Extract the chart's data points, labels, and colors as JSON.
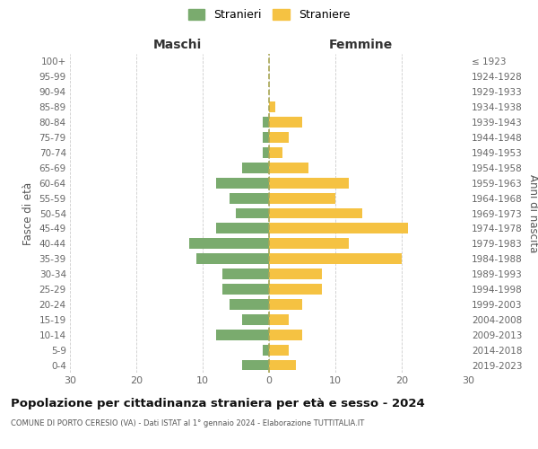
{
  "age_groups": [
    "100+",
    "95-99",
    "90-94",
    "85-89",
    "80-84",
    "75-79",
    "70-74",
    "65-69",
    "60-64",
    "55-59",
    "50-54",
    "45-49",
    "40-44",
    "35-39",
    "30-34",
    "25-29",
    "20-24",
    "15-19",
    "10-14",
    "5-9",
    "0-4"
  ],
  "birth_years": [
    "≤ 1923",
    "1924-1928",
    "1929-1933",
    "1934-1938",
    "1939-1943",
    "1944-1948",
    "1949-1953",
    "1954-1958",
    "1959-1963",
    "1964-1968",
    "1969-1973",
    "1974-1978",
    "1979-1983",
    "1984-1988",
    "1989-1993",
    "1994-1998",
    "1999-2003",
    "2004-2008",
    "2009-2013",
    "2014-2018",
    "2019-2023"
  ],
  "maschi": [
    0,
    0,
    0,
    0,
    1,
    1,
    1,
    4,
    8,
    6,
    5,
    8,
    12,
    11,
    7,
    7,
    6,
    4,
    8,
    1,
    4
  ],
  "femmine": [
    0,
    0,
    0,
    1,
    5,
    3,
    2,
    6,
    12,
    10,
    14,
    21,
    12,
    20,
    8,
    8,
    5,
    3,
    5,
    3,
    4
  ],
  "color_maschi": "#7aab6e",
  "color_femmine": "#f5c242",
  "title": "Popolazione per cittadinanza straniera per età e sesso - 2024",
  "subtitle": "COMUNE DI PORTO CERESIO (VA) - Dati ISTAT al 1° gennaio 2024 - Elaborazione TUTTITALIA.IT",
  "xlabel_left": "Maschi",
  "xlabel_right": "Femmine",
  "ylabel_left": "Fasce di età",
  "ylabel_right": "Anni di nascita",
  "legend_maschi": "Stranieri",
  "legend_femmine": "Straniere",
  "xlim": 30,
  "background_color": "#ffffff",
  "grid_color": "#cccccc",
  "dashed_line_color": "#aaa855"
}
